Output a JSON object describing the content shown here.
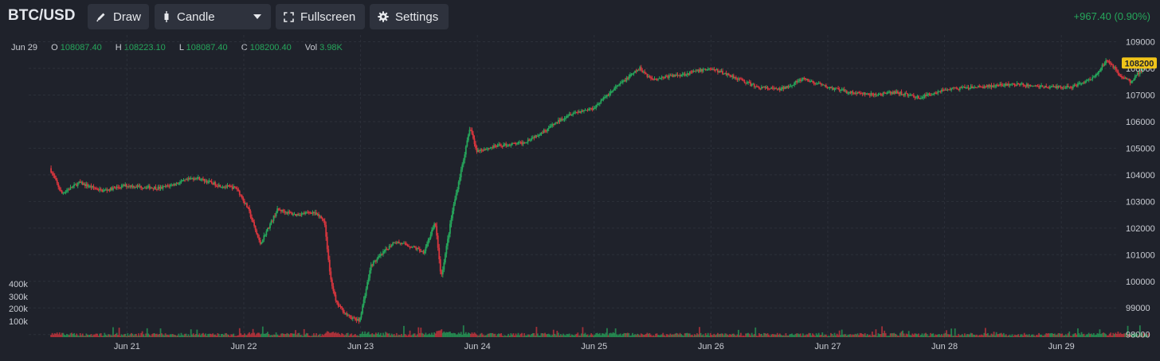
{
  "toolbar": {
    "symbol": "BTC/USD",
    "draw_label": "Draw",
    "chart_type_label": "Candle",
    "fullscreen_label": "Fullscreen",
    "settings_label": "Settings",
    "change": "+967.40 (0.90%)"
  },
  "legend": {
    "date": "Jun 29",
    "o_label": "O",
    "o_value": "108087.40",
    "h_label": "H",
    "h_value": "108223.10",
    "l_label": "L",
    "l_value": "108087.40",
    "c_label": "C",
    "c_value": "108200.40",
    "vol_label": "Vol",
    "vol_value": "3.98K"
  },
  "colors": {
    "up": "#26a65b",
    "down": "#d9363e",
    "background": "#1f222b",
    "grid": "#2c303a",
    "price_badge": "#f0c419"
  },
  "chart_data": {
    "type": "candlestick",
    "title": "",
    "x_tick_labels": [
      "Jun 21",
      "Jun 22",
      "Jun 23",
      "Jun 24",
      "Jun 25",
      "Jun 26",
      "Jun 27",
      "Jun 28",
      "Jun 29"
    ],
    "y_axis": {
      "ticks": [
        98000,
        99000,
        100000,
        101000,
        102000,
        103000,
        104000,
        105000,
        106000,
        107000,
        108000,
        109000
      ],
      "range": [
        98000,
        109000
      ]
    },
    "volume_axis": {
      "ticks": [
        "100k",
        "200k",
        "300k",
        "400k"
      ],
      "range": [
        0,
        400000
      ]
    },
    "last_price_badge": "108200",
    "grid": true,
    "price_path": [
      [
        20.35,
        104250
      ],
      [
        20.45,
        103300
      ],
      [
        20.6,
        103700
      ],
      [
        20.8,
        103400
      ],
      [
        21.0,
        103600
      ],
      [
        21.3,
        103500
      ],
      [
        21.6,
        103900
      ],
      [
        21.8,
        103600
      ],
      [
        21.95,
        103500
      ],
      [
        22.05,
        102700
      ],
      [
        22.15,
        101400
      ],
      [
        22.3,
        102700
      ],
      [
        22.45,
        102500
      ],
      [
        22.6,
        102600
      ],
      [
        22.7,
        102300
      ],
      [
        22.75,
        100200
      ],
      [
        22.8,
        99200
      ],
      [
        22.9,
        98700
      ],
      [
        22.95,
        98600
      ],
      [
        23.0,
        98500
      ],
      [
        23.1,
        100600
      ],
      [
        23.3,
        101500
      ],
      [
        23.45,
        101300
      ],
      [
        23.55,
        101100
      ],
      [
        23.65,
        102200
      ],
      [
        23.7,
        100100
      ],
      [
        23.8,
        102700
      ],
      [
        23.95,
        105800
      ],
      [
        24.0,
        104900
      ],
      [
        24.2,
        105100
      ],
      [
        24.4,
        105200
      ],
      [
        24.6,
        105700
      ],
      [
        24.8,
        106300
      ],
      [
        25.0,
        106500
      ],
      [
        25.2,
        107300
      ],
      [
        25.4,
        108000
      ],
      [
        25.5,
        107600
      ],
      [
        25.8,
        107800
      ],
      [
        26.0,
        108000
      ],
      [
        26.2,
        107700
      ],
      [
        26.4,
        107300
      ],
      [
        26.6,
        107200
      ],
      [
        26.8,
        107600
      ],
      [
        27.0,
        107300
      ],
      [
        27.2,
        107100
      ],
      [
        27.4,
        107000
      ],
      [
        27.6,
        107100
      ],
      [
        27.8,
        106900
      ],
      [
        28.0,
        107200
      ],
      [
        28.3,
        107300
      ],
      [
        28.6,
        107400
      ],
      [
        28.9,
        107300
      ],
      [
        29.1,
        107300
      ],
      [
        29.3,
        107700
      ],
      [
        29.4,
        108350
      ],
      [
        29.5,
        107800
      ],
      [
        29.6,
        107500
      ],
      [
        29.75,
        108200
      ]
    ],
    "last_candle": {
      "date": "Jun 29",
      "open": 108087.4,
      "high": 108223.1,
      "low": 108087.4,
      "close": 108200.4,
      "volume": "3.98K"
    }
  }
}
